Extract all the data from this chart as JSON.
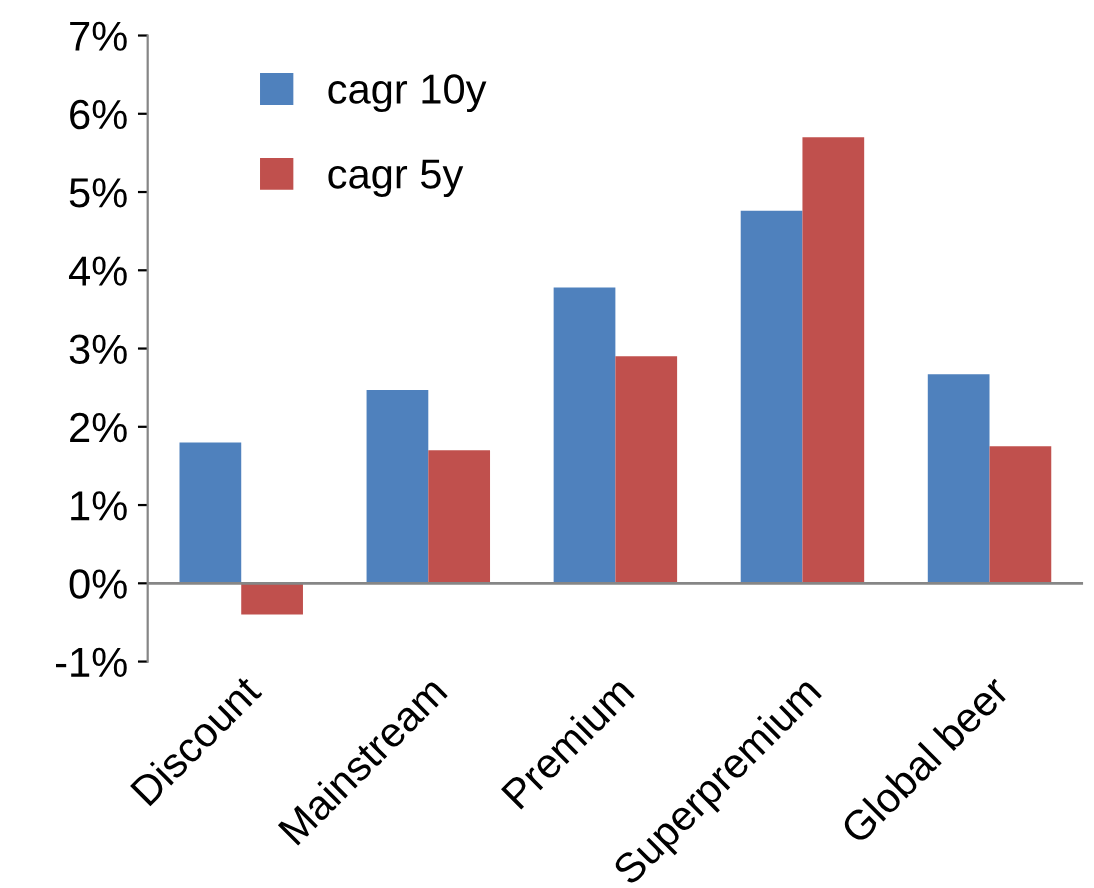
{
  "chart_data": {
    "type": "bar",
    "categories": [
      "Discount",
      "Mainstream",
      "Premium",
      "Superpremium",
      "Global beer"
    ],
    "series": [
      {
        "name": "cagr 10y",
        "color": "#4f81bd",
        "values": [
          1.8,
          2.47,
          3.78,
          4.76,
          2.67
        ]
      },
      {
        "name": "cagr 5y",
        "color": "#c0504d",
        "values": [
          -0.4,
          1.7,
          2.9,
          5.7,
          1.75
        ]
      }
    ],
    "ylim": [
      -1,
      7
    ],
    "yticks": [
      {
        "value": -1,
        "label": "-1%"
      },
      {
        "value": 0,
        "label": "0%"
      },
      {
        "value": 1,
        "label": "1%"
      },
      {
        "value": 2,
        "label": "2%"
      },
      {
        "value": 3,
        "label": "3%"
      },
      {
        "value": 4,
        "label": "4%"
      },
      {
        "value": 5,
        "label": "5%"
      },
      {
        "value": 6,
        "label": "6%"
      },
      {
        "value": 7,
        "label": "7%"
      }
    ],
    "grid": false,
    "legend": "top left"
  }
}
